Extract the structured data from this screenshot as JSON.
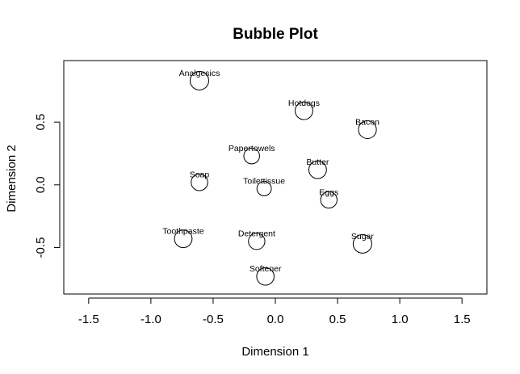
{
  "chart_data": {
    "type": "scatter",
    "title": "Bubble Plot",
    "xlabel": "Dimension 1",
    "ylabel": "Dimension 2",
    "xlim": [
      -1.7,
      1.7
    ],
    "ylim": [
      -0.87,
      0.99
    ],
    "xticks": [
      -1.5,
      -1.0,
      -0.5,
      0.0,
      0.5,
      1.0,
      1.5
    ],
    "xtick_labels": [
      "-1.5",
      "-1.0",
      "-0.5",
      "0.0",
      "0.5",
      "1.0",
      "1.5"
    ],
    "yticks": [
      -0.5,
      0.0,
      0.5
    ],
    "ytick_labels": [
      "-0.5",
      "0.0",
      "0.5"
    ],
    "grid": false,
    "marker": "open-circle",
    "points": [
      {
        "label": "Analgesics",
        "x": -0.61,
        "y": 0.83,
        "size": 1.0
      },
      {
        "label": "Hotdogs",
        "x": 0.23,
        "y": 0.59,
        "size": 0.9
      },
      {
        "label": "Bacon",
        "x": 0.74,
        "y": 0.44,
        "size": 0.93
      },
      {
        "label": "Papertowels",
        "x": -0.19,
        "y": 0.23,
        "size": 0.72
      },
      {
        "label": "Butter",
        "x": 0.34,
        "y": 0.12,
        "size": 0.9
      },
      {
        "label": "Soap",
        "x": -0.61,
        "y": 0.02,
        "size": 0.8
      },
      {
        "label": "Toilettissue",
        "x": -0.09,
        "y": -0.03,
        "size": 0.6
      },
      {
        "label": "Eggs",
        "x": 0.43,
        "y": -0.12,
        "size": 0.78
      },
      {
        "label": "Toothpaste",
        "x": -0.74,
        "y": -0.43,
        "size": 0.9
      },
      {
        "label": "Detergent",
        "x": -0.15,
        "y": -0.45,
        "size": 0.78
      },
      {
        "label": "Sugar",
        "x": 0.7,
        "y": -0.47,
        "size": 1.0
      },
      {
        "label": "Softener",
        "x": -0.08,
        "y": -0.73,
        "size": 0.88
      }
    ]
  }
}
